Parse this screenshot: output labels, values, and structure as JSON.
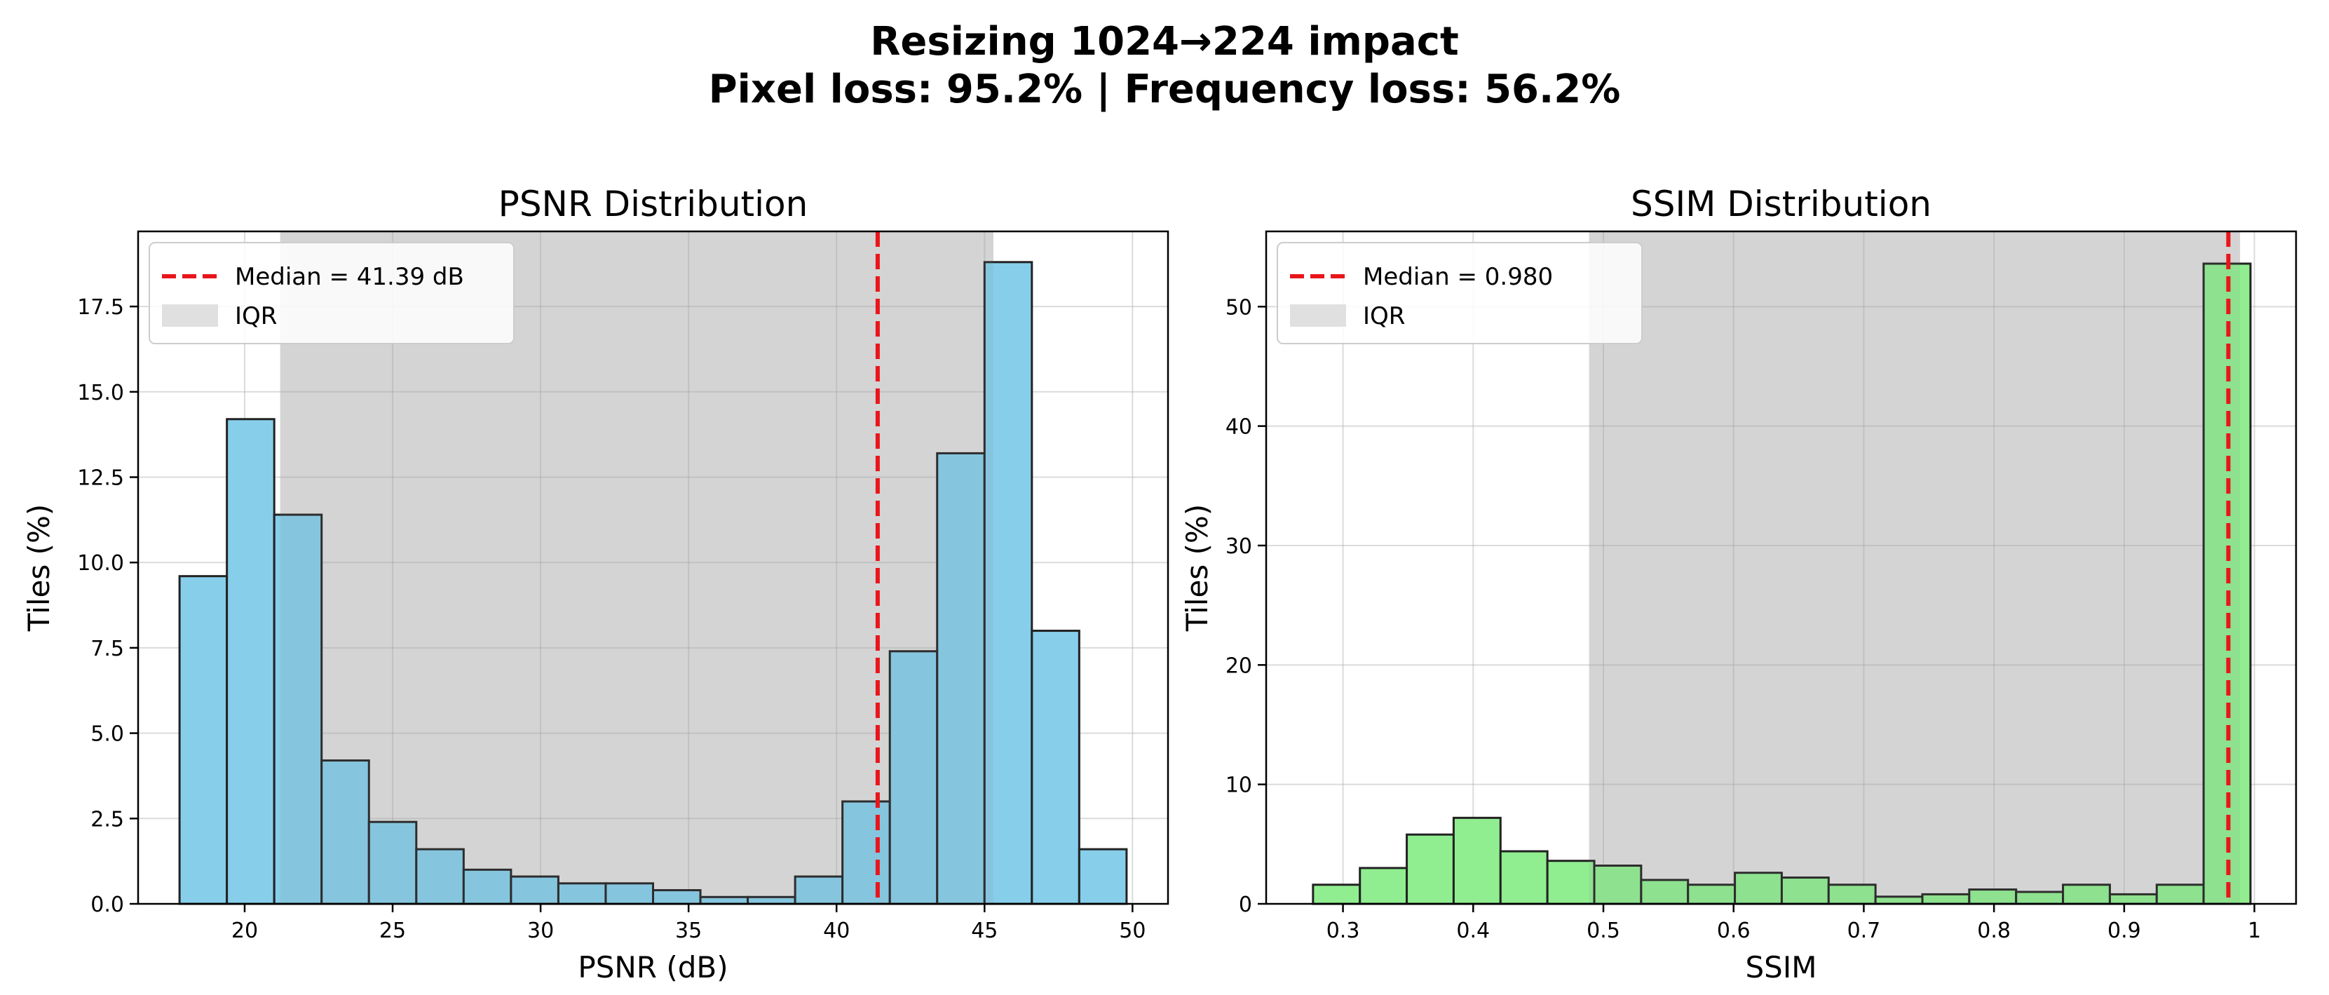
{
  "figure": {
    "title_line1": "Resizing 1024→224 impact",
    "title_line2": "Pixel loss: 95.2% | Frequency loss: 56.2%"
  },
  "chart_data": [
    {
      "type": "bar",
      "title": "PSNR Distribution",
      "xlabel": "PSNR (dB)",
      "ylabel": "Tiles (%)",
      "xlim": [
        16.4,
        51.2
      ],
      "ylim": [
        0,
        19.7
      ],
      "xticks": [
        20,
        25,
        30,
        35,
        40,
        45,
        50
      ],
      "yticks": [
        0.0,
        2.5,
        5.0,
        7.5,
        10.0,
        12.5,
        15.0,
        17.5
      ],
      "ytick_labels": [
        "0.0",
        "2.5",
        "5.0",
        "7.5",
        "10.0",
        "12.5",
        "15.0",
        "17.5"
      ],
      "bin_edges": [
        17.8,
        19.4,
        21.0,
        22.6,
        24.2,
        25.8,
        27.4,
        29.0,
        30.6,
        32.2,
        33.8,
        35.4,
        37.0,
        38.6,
        40.2,
        41.8,
        43.4,
        45.0,
        46.6,
        48.2,
        49.8
      ],
      "values": [
        9.6,
        14.2,
        11.4,
        4.2,
        2.4,
        1.6,
        1.0,
        0.8,
        0.6,
        0.6,
        0.4,
        0.2,
        0.2,
        0.8,
        3.0,
        7.4,
        13.2,
        18.8,
        8.0,
        1.6
      ],
      "bar_color": "#87ceeb",
      "bar_edge_color": "#222222",
      "median": 41.39,
      "iqr": [
        21.2,
        45.3
      ],
      "median_color": "#e8161b",
      "iqr_color": "#e0e0e0",
      "legend": {
        "position": "upper-left",
        "median_label": "Median = 41.39 dB",
        "iqr_label": "IQR"
      },
      "grid": true
    },
    {
      "type": "bar",
      "title": "SSIM Distribution",
      "xlabel": "SSIM",
      "ylabel": "Tiles (%)",
      "xlim": [
        0.241,
        1.032
      ],
      "ylim": [
        0,
        56.3
      ],
      "xticks": [
        0.3,
        0.4,
        0.5,
        0.6,
        0.7,
        0.8,
        0.9,
        1.0
      ],
      "yticks": [
        0,
        10,
        20,
        30,
        40,
        50
      ],
      "ytick_labels": [
        "0",
        "10",
        "20",
        "30",
        "40",
        "50"
      ],
      "bin_edges": [
        0.277,
        0.313,
        0.349,
        0.385,
        0.421,
        0.457,
        0.493,
        0.529,
        0.565,
        0.601,
        0.637,
        0.673,
        0.709,
        0.745,
        0.781,
        0.817,
        0.853,
        0.889,
        0.925,
        0.961,
        0.997
      ],
      "values": [
        1.6,
        3.0,
        5.8,
        7.2,
        4.4,
        3.6,
        3.2,
        2.0,
        1.6,
        2.6,
        2.2,
        1.6,
        0.6,
        0.8,
        1.2,
        1.0,
        1.6,
        0.8,
        1.6,
        53.6
      ],
      "bar_color": "#90ee90",
      "bar_edge_color": "#222222",
      "median": 0.98,
      "iqr": [
        0.489,
        0.989
      ],
      "median_color": "#e8161b",
      "iqr_color": "#e0e0e0",
      "legend": {
        "position": "upper-left",
        "median_label": "Median = 0.980",
        "iqr_label": "IQR"
      },
      "grid": true
    }
  ]
}
